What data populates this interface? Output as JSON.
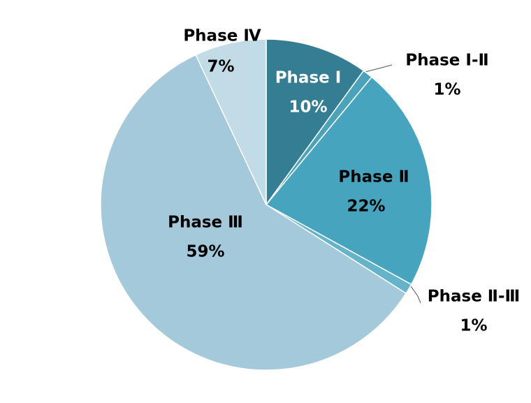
{
  "chart_data": {
    "type": "pie",
    "categories": [
      "Phase Ⅰ",
      "Phase Ⅰ-Ⅱ",
      "Phase Ⅱ",
      "Phase Ⅱ-Ⅲ",
      "Phase Ⅲ",
      "Phase Ⅳ"
    ],
    "values": [
      10,
      1,
      22,
      1,
      59,
      7
    ],
    "value_labels": [
      "10%",
      "1%",
      "22%",
      "1%",
      "59%",
      "7%"
    ],
    "colors": [
      "#357d93",
      "#4aa2bb",
      "#47a4be",
      "#64b3ca",
      "#a3c9da",
      "#c1dce6"
    ]
  }
}
